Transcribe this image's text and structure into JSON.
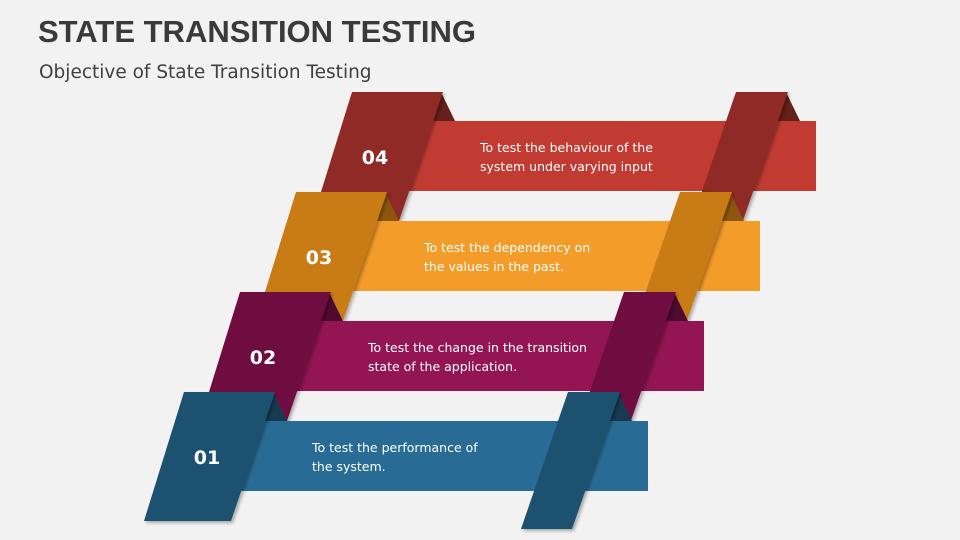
{
  "title": "STATE TRANSITION TESTING",
  "subtitle": "Objective of State Transition Testing",
  "steps": [
    {
      "number": "01",
      "lines": [
        "To test the performance of",
        "the system."
      ],
      "band_color": "#286c95",
      "dark_color": "#1f516f",
      "fold_color": "#163a50"
    },
    {
      "number": "02",
      "lines": [
        "To test the change in the transition",
        "state of the application."
      ],
      "band_color": "#931553",
      "dark_color": "#6f0f40",
      "fold_color": "#4f0a2d"
    },
    {
      "number": "03",
      "lines": [
        "To test the dependency on",
        "the values in the past."
      ],
      "band_color": "#f39c2a",
      "dark_color": "#c97b12",
      "fold_color": "#8e560c"
    },
    {
      "number": "04",
      "lines": [
        "To test the behaviour of the",
        "system under varying input"
      ],
      "band_color": "#c13b32",
      "dark_color": "#8f2b25",
      "fold_color": "#64201b"
    }
  ]
}
